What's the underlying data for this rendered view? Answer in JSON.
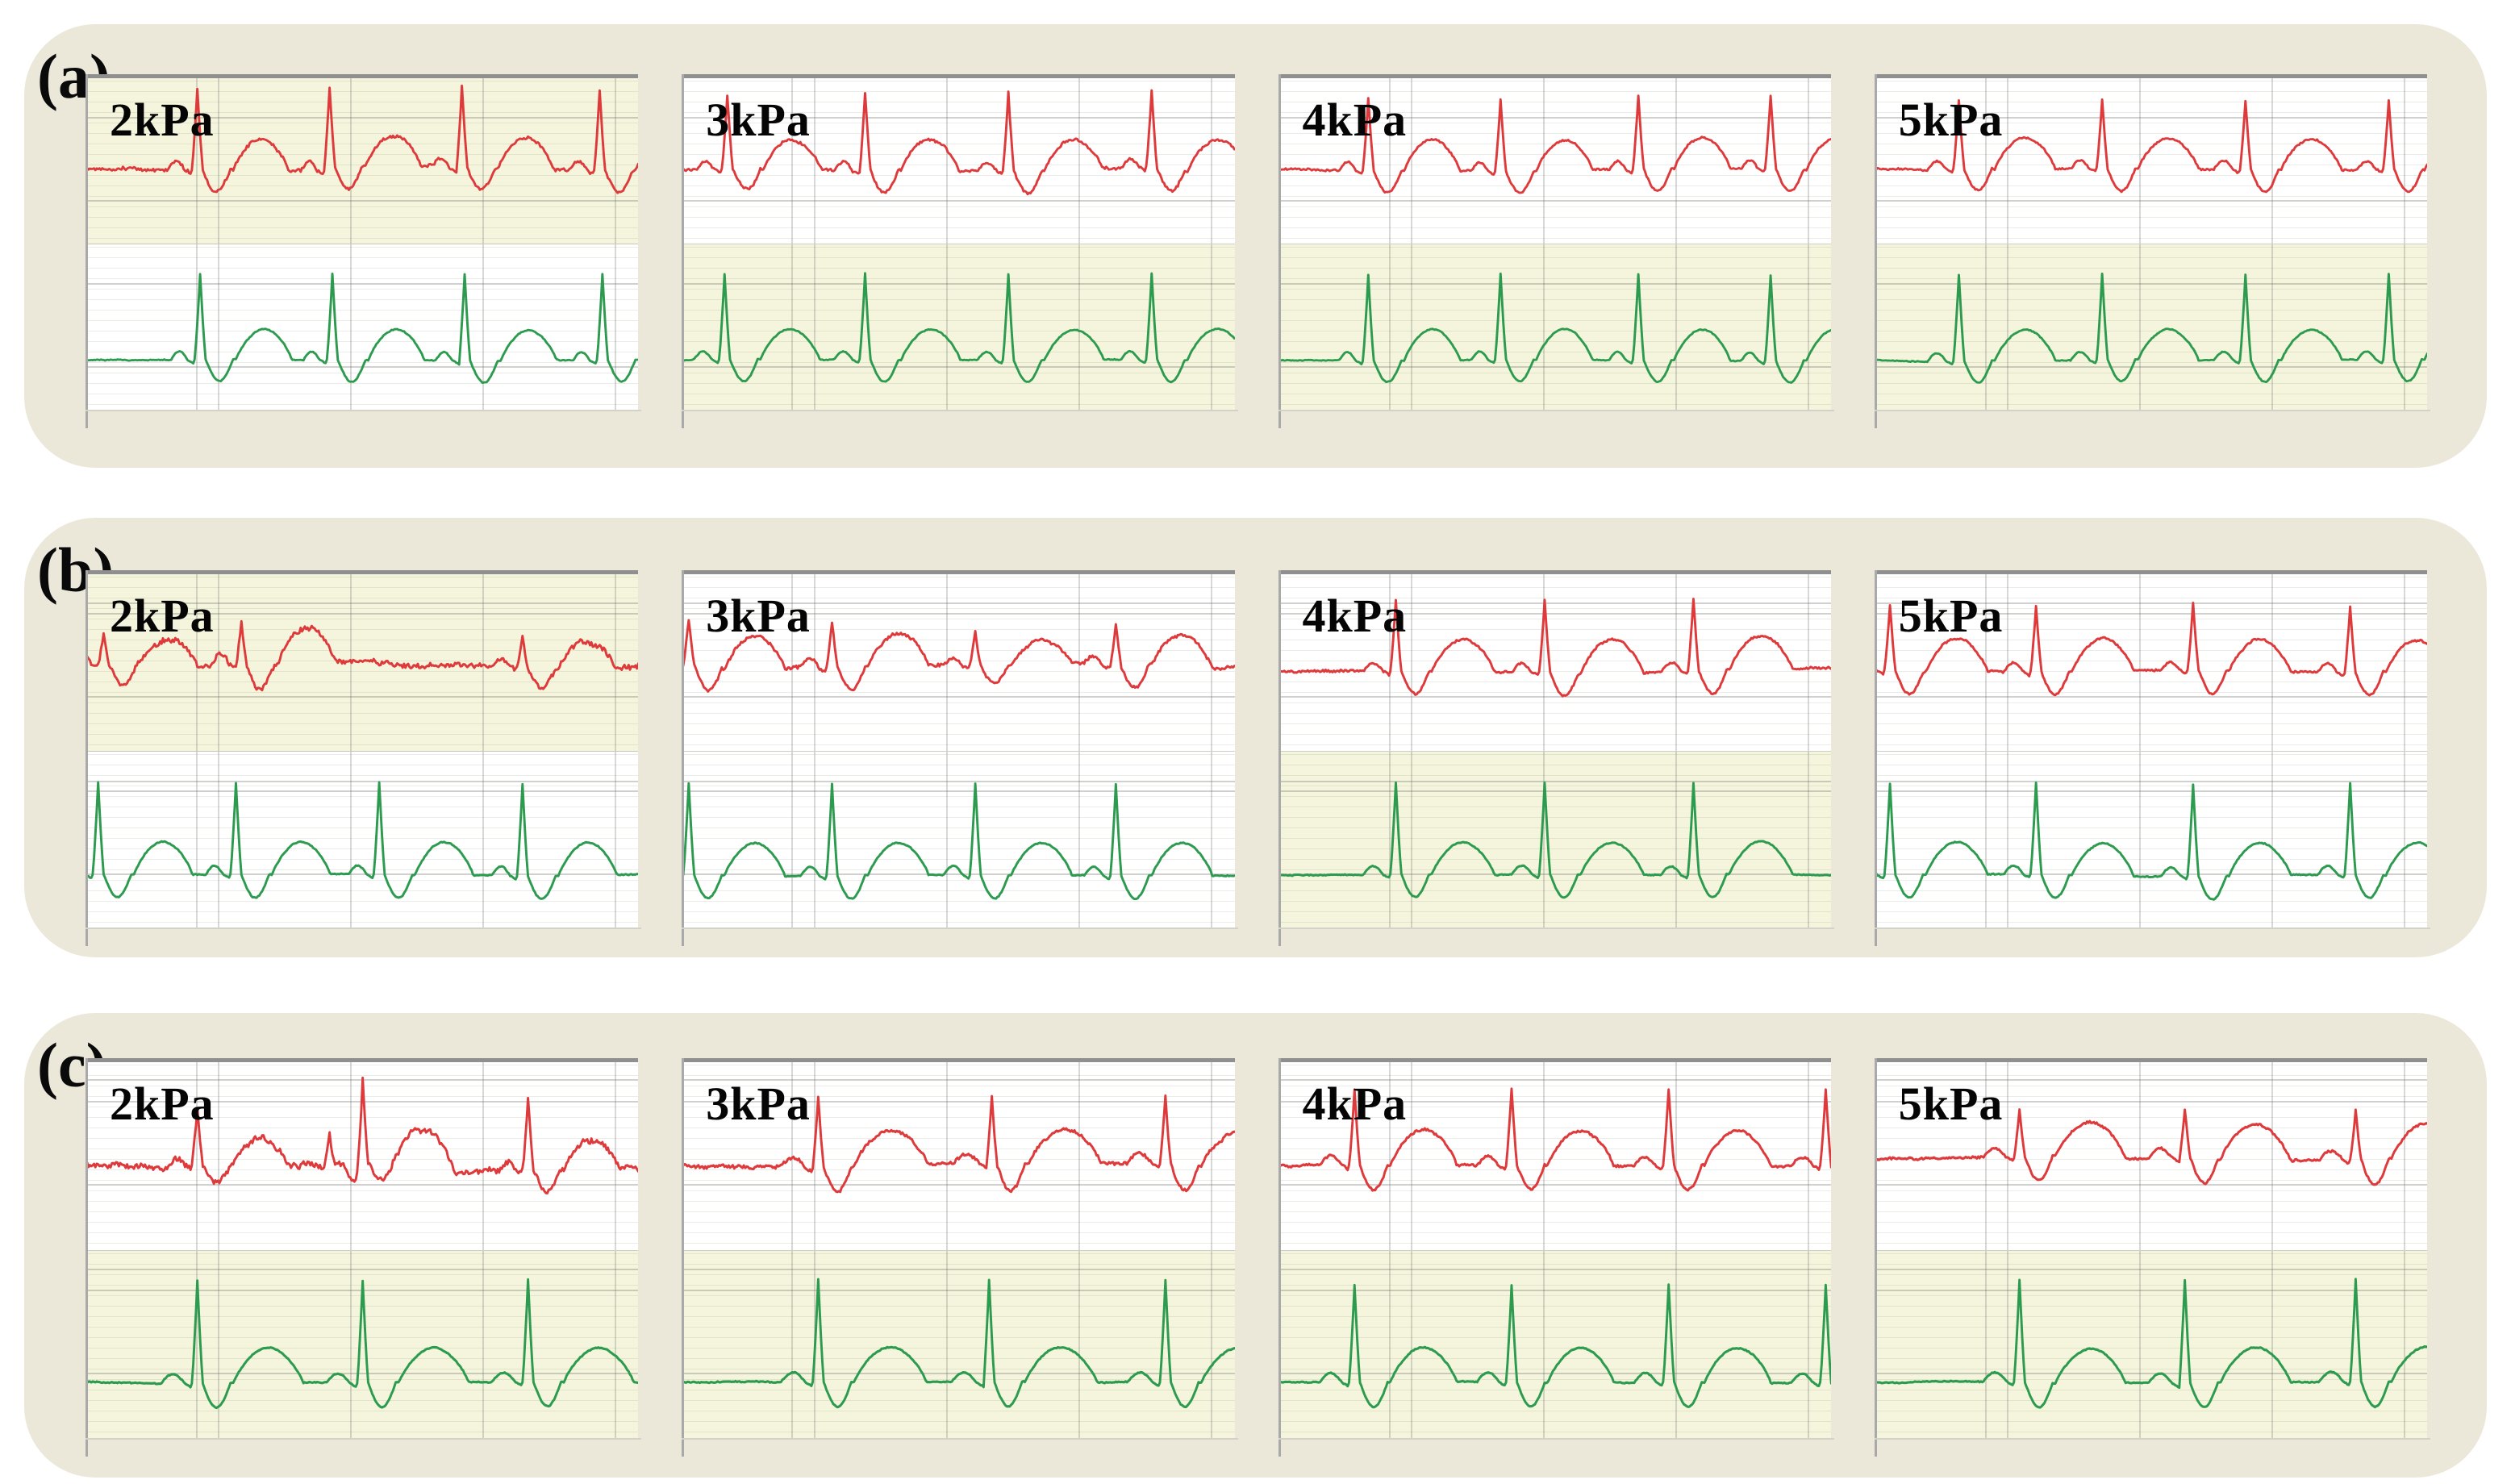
{
  "figure": {
    "row_labels": [
      "(a)",
      "(b)",
      "(c)"
    ],
    "pressure_labels": [
      "2kPa",
      "3kPa",
      "4kPa",
      "5kPa"
    ],
    "container_color": "#ebe8d9",
    "page_background": "#ffffff"
  },
  "chart_data": {
    "type": "line",
    "title": "",
    "description": "Twelve dual-trace ECG-style strip charts arranged in three rows (a),(b),(c) by four applied pressures (2kPa-5kPa). Each panel shows a red waveform in the upper strip and a green waveform in the lower strip over fine gray gridlines; strip backgrounds alternate between white and pale yellow. No numeric axis tick labels are visible. beat_positions are QRS spike locations as fractions of panel width; baselines and amplitudes are fractions of strip height.",
    "legend_visible": false,
    "axis_tick_labels_visible": false,
    "colors": {
      "red_trace": "#de3a3c",
      "green_trace": "#2d9b4f",
      "panel_white": "#ffffff",
      "panel_yellow": "#f4f5dc",
      "grid_major": "#b9bcab",
      "grid_minor": "#e4e6cb",
      "panel_top_border": "#8f8f8f",
      "container": "#ebe8d9"
    },
    "rows": [
      {
        "label": "(a)",
        "panels": [
          {
            "pressure_label": "2kPa",
            "top_series": {
              "name": "red ECG trace",
              "color": "#de3a3c",
              "background": "#f4f5dc",
              "baseline": 0.55,
              "spike_scale": 0.95,
              "noise_level": 1.7,
              "seed": 11,
              "beat_positions": [
                0.2,
                0.44,
                0.68,
                0.93
              ],
              "beat_amps": [
                1,
                1,
                1,
                1
              ]
            },
            "bottom_series": {
              "name": "green ECG trace",
              "color": "#2d9b4f",
              "background": "#ffffff",
              "baseline": 0.7,
              "spike_scale": 1.0,
              "noise_level": 0.55,
              "seed": 12,
              "beat_positions": [
                0.205,
                0.445,
                0.685,
                0.935
              ],
              "beat_amps": [
                1,
                1,
                1,
                1
              ]
            }
          },
          {
            "pressure_label": "3kPa",
            "top_series": {
              "name": "red ECG trace",
              "color": "#de3a3c",
              "background": "#ffffff",
              "baseline": 0.55,
              "spike_scale": 0.9,
              "noise_level": 1.5,
              "seed": 21,
              "beat_positions": [
                0.08,
                0.33,
                0.59,
                0.85
              ],
              "beat_amps": [
                0.95,
                1,
                1,
                1
              ]
            },
            "bottom_series": {
              "name": "green ECG trace",
              "color": "#2d9b4f",
              "background": "#f4f5dc",
              "baseline": 0.7,
              "spike_scale": 1.0,
              "noise_level": 0.5,
              "seed": 22,
              "beat_positions": [
                0.075,
                0.33,
                0.59,
                0.85
              ],
              "beat_amps": [
                1,
                1,
                1,
                1
              ]
            }
          },
          {
            "pressure_label": "4kPa",
            "top_series": {
              "name": "red ECG trace",
              "color": "#de3a3c",
              "background": "#ffffff",
              "baseline": 0.55,
              "spike_scale": 0.85,
              "noise_level": 0.95,
              "seed": 31,
              "beat_positions": [
                0.16,
                0.4,
                0.65,
                0.89
              ],
              "beat_amps": [
                1,
                1,
                1,
                1
              ]
            },
            "bottom_series": {
              "name": "green ECG trace",
              "color": "#2d9b4f",
              "background": "#f4f5dc",
              "baseline": 0.7,
              "spike_scale": 1.0,
              "noise_level": 0.5,
              "seed": 32,
              "beat_positions": [
                0.16,
                0.4,
                0.65,
                0.89
              ],
              "beat_amps": [
                1,
                1,
                1,
                1
              ]
            }
          },
          {
            "pressure_label": "5kPa",
            "top_series": {
              "name": "red ECG trace",
              "color": "#de3a3c",
              "background": "#ffffff",
              "baseline": 0.55,
              "spike_scale": 0.8,
              "noise_level": 0.95,
              "seed": 41,
              "beat_positions": [
                0.15,
                0.41,
                0.67,
                0.93
              ],
              "beat_amps": [
                1,
                1,
                1,
                1
              ]
            },
            "bottom_series": {
              "name": "green ECG trace",
              "color": "#2d9b4f",
              "background": "#f4f5dc",
              "baseline": 0.7,
              "spike_scale": 1.0,
              "noise_level": 0.5,
              "seed": 42,
              "beat_positions": [
                0.15,
                0.41,
                0.67,
                0.93
              ],
              "beat_amps": [
                1,
                1,
                1,
                1
              ]
            }
          }
        ]
      },
      {
        "label": "(b)",
        "panels": [
          {
            "pressure_label": "2kPa",
            "top_series": {
              "name": "red ECG trace",
              "color": "#de3a3c",
              "background": "#f4f5dc",
              "baseline": 0.5,
              "spike_scale": 0.42,
              "noise_level": 2.7,
              "seed": 51,
              "beat_positions": [
                0.03,
                0.28,
                0.79
              ],
              "beat_amps": [
                0.85,
                1.1,
                0.8
              ]
            },
            "bottom_series": {
              "name": "green ECG trace",
              "color": "#2d9b4f",
              "background": "#ffffff",
              "baseline": 0.7,
              "spike_scale": 1.0,
              "noise_level": 0.55,
              "seed": 52,
              "beat_positions": [
                0.02,
                0.27,
                0.53,
                0.79
              ],
              "beat_amps": [
                1,
                1,
                1,
                1
              ]
            }
          },
          {
            "pressure_label": "3kPa",
            "top_series": {
              "name": "red ECG trace",
              "color": "#de3a3c",
              "background": "#ffffff",
              "baseline": 0.52,
              "spike_scale": 0.5,
              "noise_level": 1.7,
              "seed": 61,
              "beat_positions": [
                0.01,
                0.27,
                0.53,
                0.785
              ],
              "beat_amps": [
                1,
                1,
                0.75,
                0.95
              ]
            },
            "bottom_series": {
              "name": "green ECG trace",
              "color": "#2d9b4f",
              "background": "#ffffff",
              "baseline": 0.7,
              "spike_scale": 1.0,
              "noise_level": 0.5,
              "seed": 62,
              "beat_positions": [
                0.01,
                0.27,
                0.53,
                0.785
              ],
              "beat_amps": [
                1,
                1,
                1,
                1
              ]
            }
          },
          {
            "pressure_label": "4kPa",
            "top_series": {
              "name": "red ECG trace",
              "color": "#de3a3c",
              "background": "#ffffff",
              "baseline": 0.55,
              "spike_scale": 0.78,
              "noise_level": 1.1,
              "seed": 71,
              "beat_positions": [
                0.21,
                0.48,
                0.75
              ],
              "beat_amps": [
                1,
                1,
                1
              ]
            },
            "bottom_series": {
              "name": "green ECG trace",
              "color": "#2d9b4f",
              "background": "#f4f5dc",
              "baseline": 0.7,
              "spike_scale": 1.0,
              "noise_level": 0.5,
              "seed": 72,
              "beat_positions": [
                0.21,
                0.48,
                0.75
              ],
              "beat_amps": [
                1,
                1,
                1
              ]
            }
          },
          {
            "pressure_label": "5kPa",
            "top_series": {
              "name": "red ECG trace",
              "color": "#de3a3c",
              "background": "#ffffff",
              "baseline": 0.55,
              "spike_scale": 0.72,
              "noise_level": 1.0,
              "seed": 81,
              "beat_positions": [
                0.025,
                0.29,
                0.575,
                0.86
              ],
              "beat_amps": [
                1,
                1,
                1,
                1
              ]
            },
            "bottom_series": {
              "name": "green ECG trace",
              "color": "#2d9b4f",
              "background": "#ffffff",
              "baseline": 0.7,
              "spike_scale": 1.0,
              "noise_level": 0.55,
              "seed": 82,
              "beat_positions": [
                0.025,
                0.29,
                0.575,
                0.86
              ],
              "beat_amps": [
                1,
                1,
                1,
                1
              ]
            }
          }
        ]
      },
      {
        "label": "(c)",
        "panels": [
          {
            "pressure_label": "2kPa",
            "top_series": {
              "name": "red ECG trace",
              "color": "#de3a3c",
              "background": "#ffffff",
              "baseline": 0.55,
              "spike_scale": 0.8,
              "noise_level": 2.7,
              "seed": 91,
              "beat_positions": [
                0.2,
                0.44,
                0.5,
                0.8
              ],
              "beat_amps": [
                0.75,
                0.45,
                1.1,
                0.9
              ]
            },
            "bottom_series": {
              "name": "green ECG trace",
              "color": "#2d9b4f",
              "background": "#f4f5dc",
              "baseline": 0.7,
              "spike_scale": 1.05,
              "noise_level": 0.5,
              "seed": 92,
              "beat_positions": [
                0.2,
                0.5,
                0.8
              ],
              "beat_amps": [
                1,
                1,
                1
              ]
            }
          },
          {
            "pressure_label": "3kPa",
            "top_series": {
              "name": "red ECG trace",
              "color": "#de3a3c",
              "background": "#ffffff",
              "baseline": 0.55,
              "spike_scale": 0.7,
              "noise_level": 1.5,
              "seed": 101,
              "beat_positions": [
                0.245,
                0.56,
                0.875
              ],
              "beat_amps": [
                1,
                1,
                1
              ]
            },
            "bottom_series": {
              "name": "green ECG trace",
              "color": "#2d9b4f",
              "background": "#f4f5dc",
              "baseline": 0.7,
              "spike_scale": 1.05,
              "noise_level": 0.5,
              "seed": 102,
              "beat_positions": [
                0.245,
                0.555,
                0.875
              ],
              "beat_amps": [
                1,
                1,
                1
              ]
            }
          },
          {
            "pressure_label": "4kPa",
            "top_series": {
              "name": "red ECG trace",
              "color": "#de3a3c",
              "background": "#ffffff",
              "baseline": 0.55,
              "spike_scale": 0.78,
              "noise_level": 1.1,
              "seed": 111,
              "beat_positions": [
                0.135,
                0.42,
                0.705,
                0.99
              ],
              "beat_amps": [
                1,
                1,
                1,
                1
              ]
            },
            "bottom_series": {
              "name": "green ECG trace",
              "color": "#2d9b4f",
              "background": "#f4f5dc",
              "baseline": 0.7,
              "spike_scale": 1.0,
              "noise_level": 0.5,
              "seed": 112,
              "beat_positions": [
                0.135,
                0.42,
                0.705,
                0.99
              ],
              "beat_amps": [
                1,
                1,
                1,
                1
              ]
            }
          },
          {
            "pressure_label": "5kPa",
            "top_series": {
              "name": "red ECG trace",
              "color": "#de3a3c",
              "background": "#ffffff",
              "baseline": 0.52,
              "spike_scale": 0.5,
              "noise_level": 1.0,
              "seed": 121,
              "beat_positions": [
                0.26,
                0.56,
                0.87
              ],
              "beat_amps": [
                1,
                1,
                1
              ]
            },
            "bottom_series": {
              "name": "green ECG trace",
              "color": "#2d9b4f",
              "background": "#f4f5dc",
              "baseline": 0.7,
              "spike_scale": 1.05,
              "noise_level": 0.5,
              "seed": 122,
              "beat_positions": [
                0.26,
                0.56,
                0.87
              ],
              "beat_amps": [
                1,
                1,
                1
              ]
            }
          }
        ]
      }
    ]
  }
}
